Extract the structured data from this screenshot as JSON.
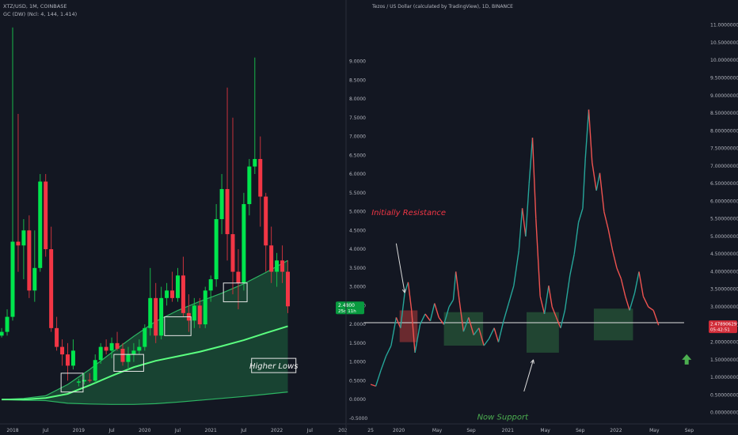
{
  "colors": {
    "background": "#131722",
    "bull": "#00e64d",
    "bear": "#f23645",
    "bull_light": "#26a69a",
    "bear_light": "#ef5350",
    "band_fill": "#1e7a46",
    "accent_line": "#5bff80",
    "axis_text": "#b2b5be",
    "note_red": "#f23645",
    "note_green": "#4caf50"
  },
  "chart_data": [
    {
      "type": "candlestick",
      "title": "XTZ/USD, 1M, COINBASE",
      "subtitle": "GC (DW) (Ncl: 4, 144, 1.414)",
      "x_ticks": [
        {
          "label": "2018",
          "x": 0
        },
        {
          "label": "Jul",
          "x": 6
        },
        {
          "label": "2019",
          "x": 12
        },
        {
          "label": "Jul",
          "x": 18
        },
        {
          "label": "2020",
          "x": 24
        },
        {
          "label": "Jul",
          "x": 30
        },
        {
          "label": "2021",
          "x": 36
        },
        {
          "label": "Jul",
          "x": 42
        },
        {
          "label": "2022",
          "x": 48
        },
        {
          "label": "Jul",
          "x": 54
        },
        {
          "label": "202",
          "x": 60
        }
      ],
      "xlim": [
        -2.3,
        60
      ],
      "ylim": [
        -0.65,
        10
      ],
      "y_ticks": [
        "9.0000",
        "8.5000",
        "8.0000",
        "7.5000",
        "7.0000",
        "6.5000",
        "6.0000",
        "5.5000",
        "5.0000",
        "4.5000",
        "4.0000",
        "3.5000",
        "3.0000",
        "2.5000",
        "2.0000",
        "1.5000",
        "1.0000",
        "0.5000",
        "0.0000",
        "-0.5000"
      ],
      "y_tick_values": [
        9.0,
        8.5,
        8.0,
        7.5,
        7.0,
        6.5,
        6.0,
        5.5,
        5.0,
        4.5,
        4.0,
        3.5,
        3.0,
        2.5,
        2.0,
        1.5,
        1.0,
        0.5,
        0.0,
        -0.5
      ],
      "last_price": {
        "label": "2.4800",
        "sub": "25d 11h",
        "value": 2.48
      },
      "candles": [
        {
          "x": -2,
          "o": 1.7,
          "h": 1.9,
          "l": 1.65,
          "c": 1.8
        },
        {
          "x": -1,
          "o": 1.8,
          "h": 2.4,
          "l": 1.7,
          "c": 2.2
        },
        {
          "x": 0,
          "o": 2.2,
          "h": 9.9,
          "l": 2.1,
          "c": 4.2
        },
        {
          "x": 1,
          "o": 4.2,
          "h": 7.6,
          "l": 3.4,
          "c": 4.1
        },
        {
          "x": 2,
          "o": 4.1,
          "h": 4.8,
          "l": 3.2,
          "c": 4.5
        },
        {
          "x": 3,
          "o": 4.5,
          "h": 4.9,
          "l": 2.7,
          "c": 2.9
        },
        {
          "x": 4,
          "o": 2.9,
          "h": 4.5,
          "l": 2.6,
          "c": 3.5
        },
        {
          "x": 5,
          "o": 3.5,
          "h": 6.0,
          "l": 3.4,
          "c": 5.8
        },
        {
          "x": 6,
          "o": 5.8,
          "h": 6.0,
          "l": 3.8,
          "c": 4.0
        },
        {
          "x": 7,
          "o": 4.0,
          "h": 4.6,
          "l": 1.8,
          "c": 1.9
        },
        {
          "x": 8,
          "o": 1.9,
          "h": 2.2,
          "l": 1.3,
          "c": 1.4
        },
        {
          "x": 9,
          "o": 1.4,
          "h": 1.6,
          "l": 0.9,
          "c": 1.2
        },
        {
          "x": 10,
          "o": 1.2,
          "h": 1.5,
          "l": 0.5,
          "c": 0.9
        },
        {
          "x": 11,
          "o": 0.9,
          "h": 1.6,
          "l": 0.8,
          "c": 1.3
        },
        {
          "x": 12,
          "o": 0.45,
          "h": 0.55,
          "l": 0.35,
          "c": 0.48
        },
        {
          "x": 13,
          "o": 0.48,
          "h": 0.7,
          "l": 0.4,
          "c": 0.52
        },
        {
          "x": 14,
          "o": 0.52,
          "h": 0.7,
          "l": 0.45,
          "c": 0.5
        },
        {
          "x": 15,
          "o": 0.5,
          "h": 1.2,
          "l": 0.45,
          "c": 1.05
        },
        {
          "x": 16,
          "o": 1.05,
          "h": 1.5,
          "l": 0.95,
          "c": 1.4
        },
        {
          "x": 17,
          "o": 1.4,
          "h": 1.6,
          "l": 1.2,
          "c": 1.3
        },
        {
          "x": 18,
          "o": 1.3,
          "h": 1.65,
          "l": 1.1,
          "c": 1.5
        },
        {
          "x": 19,
          "o": 1.5,
          "h": 1.8,
          "l": 1.3,
          "c": 1.35
        },
        {
          "x": 20,
          "o": 1.35,
          "h": 1.5,
          "l": 0.9,
          "c": 1.0
        },
        {
          "x": 21,
          "o": 1.0,
          "h": 1.4,
          "l": 0.8,
          "c": 1.2
        },
        {
          "x": 22,
          "o": 1.2,
          "h": 1.5,
          "l": 1.0,
          "c": 1.3
        },
        {
          "x": 23,
          "o": 1.3,
          "h": 1.6,
          "l": 1.2,
          "c": 1.4
        },
        {
          "x": 24,
          "o": 1.4,
          "h": 2.0,
          "l": 1.3,
          "c": 1.9
        },
        {
          "x": 25,
          "o": 1.9,
          "h": 3.5,
          "l": 1.7,
          "c": 2.7
        },
        {
          "x": 26,
          "o": 2.7,
          "h": 3.1,
          "l": 1.5,
          "c": 1.7
        },
        {
          "x": 27,
          "o": 1.7,
          "h": 3.0,
          "l": 1.6,
          "c": 2.7
        },
        {
          "x": 28,
          "o": 2.7,
          "h": 3.1,
          "l": 2.5,
          "c": 2.9
        },
        {
          "x": 29,
          "o": 2.9,
          "h": 3.4,
          "l": 2.6,
          "c": 2.7
        },
        {
          "x": 30,
          "o": 2.7,
          "h": 3.5,
          "l": 2.6,
          "c": 3.3
        },
        {
          "x": 31,
          "o": 3.3,
          "h": 3.8,
          "l": 2.2,
          "c": 2.3
        },
        {
          "x": 32,
          "o": 2.3,
          "h": 2.8,
          "l": 1.8,
          "c": 2.1
        },
        {
          "x": 33,
          "o": 2.1,
          "h": 2.7,
          "l": 1.9,
          "c": 2.5
        },
        {
          "x": 34,
          "o": 2.5,
          "h": 2.7,
          "l": 1.9,
          "c": 2.0
        },
        {
          "x": 35,
          "o": 2.0,
          "h": 3.0,
          "l": 1.9,
          "c": 2.9
        },
        {
          "x": 36,
          "o": 2.9,
          "h": 3.3,
          "l": 2.6,
          "c": 3.2
        },
        {
          "x": 37,
          "o": 3.2,
          "h": 5.2,
          "l": 3.0,
          "c": 4.8
        },
        {
          "x": 38,
          "o": 4.8,
          "h": 6.0,
          "l": 4.4,
          "c": 5.6
        },
        {
          "x": 39,
          "o": 5.6,
          "h": 8.3,
          "l": 3.7,
          "c": 4.4
        },
        {
          "x": 40,
          "o": 4.4,
          "h": 7.5,
          "l": 2.8,
          "c": 3.4
        },
        {
          "x": 41,
          "o": 3.4,
          "h": 4.0,
          "l": 2.4,
          "c": 3.1
        },
        {
          "x": 42,
          "o": 3.1,
          "h": 5.5,
          "l": 2.9,
          "c": 5.2
        },
        {
          "x": 43,
          "o": 5.2,
          "h": 6.4,
          "l": 4.9,
          "c": 6.2
        },
        {
          "x": 44,
          "o": 6.2,
          "h": 9.1,
          "l": 6.0,
          "c": 6.4
        },
        {
          "x": 45,
          "o": 6.4,
          "h": 7.0,
          "l": 4.6,
          "c": 5.4
        },
        {
          "x": 46,
          "o": 5.4,
          "h": 5.5,
          "l": 3.4,
          "c": 4.1
        },
        {
          "x": 47,
          "o": 4.1,
          "h": 4.6,
          "l": 3.1,
          "c": 3.4
        },
        {
          "x": 48,
          "o": 3.4,
          "h": 3.9,
          "l": 3.0,
          "c": 3.7
        },
        {
          "x": 49,
          "o": 3.7,
          "h": 4.1,
          "l": 3.1,
          "c": 3.4
        },
        {
          "x": 50,
          "o": 3.4,
          "h": 3.7,
          "l": 2.3,
          "c": 2.48
        }
      ],
      "band": [
        {
          "x": -2,
          "top": 0.0,
          "bottom": 0.0
        },
        {
          "x": 2,
          "top": 0.03,
          "bottom": -0.02
        },
        {
          "x": 6,
          "top": 0.1,
          "bottom": -0.03
        },
        {
          "x": 10,
          "top": 0.4,
          "bottom": -0.1
        },
        {
          "x": 14,
          "top": 0.8,
          "bottom": -0.12
        },
        {
          "x": 18,
          "top": 1.25,
          "bottom": -0.13
        },
        {
          "x": 22,
          "top": 1.68,
          "bottom": -0.13
        },
        {
          "x": 26,
          "top": 2.08,
          "bottom": -0.11
        },
        {
          "x": 30,
          "top": 2.37,
          "bottom": -0.07
        },
        {
          "x": 34,
          "top": 2.61,
          "bottom": -0.02
        },
        {
          "x": 38,
          "top": 2.83,
          "bottom": 0.03
        },
        {
          "x": 42,
          "top": 3.08,
          "bottom": 0.08
        },
        {
          "x": 46,
          "top": 3.38,
          "bottom": 0.14
        },
        {
          "x": 50,
          "top": 3.7,
          "bottom": 0.2
        }
      ],
      "middle_line": [
        {
          "x": -2,
          "y": 0.0
        },
        {
          "x": 2,
          "y": 0.0
        },
        {
          "x": 6,
          "y": 0.04
        },
        {
          "x": 10,
          "y": 0.15
        },
        {
          "x": 14,
          "y": 0.38
        },
        {
          "x": 18,
          "y": 0.63
        },
        {
          "x": 22,
          "y": 0.86
        },
        {
          "x": 26,
          "y": 1.03
        },
        {
          "x": 30,
          "y": 1.15
        },
        {
          "x": 34,
          "y": 1.27
        },
        {
          "x": 38,
          "y": 1.42
        },
        {
          "x": 42,
          "y": 1.58
        },
        {
          "x": 46,
          "y": 1.77
        },
        {
          "x": 50,
          "y": 1.95
        }
      ],
      "boxes": [
        {
          "x0": 8.8,
          "x1": 12.8,
          "y0": 0.2,
          "y1": 0.7
        },
        {
          "x0": 18.4,
          "x1": 23.8,
          "y0": 0.75,
          "y1": 1.2
        },
        {
          "x0": 27.6,
          "x1": 32.4,
          "y0": 1.7,
          "y1": 2.2
        },
        {
          "x0": 38.3,
          "x1": 42.6,
          "y0": 2.6,
          "y1": 3.1
        }
      ],
      "annotation": {
        "text": "Higher Lows",
        "x": 43.7,
        "y": 0.8
      }
    },
    {
      "type": "line",
      "title": "Tezos / US Dollar (calculated by TradingView), 1D, BINANCE",
      "x_ticks": [
        {
          "label": "25",
          "x": 0
        },
        {
          "label": "2020",
          "x": 3.3
        },
        {
          "label": "May",
          "x": 7.8
        },
        {
          "label": "Sep",
          "x": 11.8
        },
        {
          "label": "2021",
          "x": 16.1
        },
        {
          "label": "May",
          "x": 20.5
        },
        {
          "label": "Sep",
          "x": 24.6
        },
        {
          "label": "2022",
          "x": 28.8
        },
        {
          "label": "May",
          "x": 33.3
        },
        {
          "label": "Sep",
          "x": 37.4
        }
      ],
      "xlim": [
        -2.8,
        39.5
      ],
      "ylim": [
        -0.3,
        11.15
      ],
      "y_ticks": [
        "11.00000000",
        "10.50000000",
        "10.00000000",
        "9.50000000",
        "9.00000000",
        "8.50000000",
        "8.00000000",
        "7.50000000",
        "7.00000000",
        "6.50000000",
        "6.00000000",
        "5.50000000",
        "5.00000000",
        "4.50000000",
        "4.00000000",
        "3.50000000",
        "3.00000000",
        "2.50000000",
        "2.00000000",
        "1.50000000",
        "1.00000000",
        "0.50000000",
        "0.00000000"
      ],
      "y_tick_values": [
        11.0,
        10.5,
        10.0,
        9.5,
        9.0,
        8.5,
        8.0,
        7.5,
        7.0,
        6.5,
        6.0,
        5.5,
        5.0,
        4.5,
        4.0,
        3.5,
        3.0,
        2.5,
        2.0,
        1.5,
        1.0,
        0.5,
        0.0
      ],
      "last_price": {
        "label": "2.47890629",
        "sub": "05:42:51",
        "value": 2.48
      },
      "support_level": 2.55,
      "series": [
        {
          "x": 0,
          "y": 0.8
        },
        {
          "x": 0.6,
          "y": 0.75
        },
        {
          "x": 1.2,
          "y": 1.2
        },
        {
          "x": 1.8,
          "y": 1.6
        },
        {
          "x": 2.4,
          "y": 1.9
        },
        {
          "x": 3.0,
          "y": 2.7
        },
        {
          "x": 3.5,
          "y": 2.4
        },
        {
          "x": 4.0,
          "y": 3.4
        },
        {
          "x": 4.4,
          "y": 3.7
        },
        {
          "x": 4.8,
          "y": 2.9
        },
        {
          "x": 5.2,
          "y": 1.7
        },
        {
          "x": 5.8,
          "y": 2.5
        },
        {
          "x": 6.4,
          "y": 2.8
        },
        {
          "x": 7.0,
          "y": 2.6
        },
        {
          "x": 7.5,
          "y": 3.1
        },
        {
          "x": 8.0,
          "y": 2.7
        },
        {
          "x": 8.6,
          "y": 2.5
        },
        {
          "x": 9.2,
          "y": 3.0
        },
        {
          "x": 9.7,
          "y": 3.2
        },
        {
          "x": 10.0,
          "y": 4.0
        },
        {
          "x": 10.4,
          "y": 3.2
        },
        {
          "x": 10.9,
          "y": 2.3
        },
        {
          "x": 11.5,
          "y": 2.7
        },
        {
          "x": 12.1,
          "y": 2.2
        },
        {
          "x": 12.7,
          "y": 2.4
        },
        {
          "x": 13.3,
          "y": 1.9
        },
        {
          "x": 13.9,
          "y": 2.1
        },
        {
          "x": 14.5,
          "y": 2.4
        },
        {
          "x": 15.0,
          "y": 2.0
        },
        {
          "x": 15.6,
          "y": 2.6
        },
        {
          "x": 16.2,
          "y": 3.1
        },
        {
          "x": 16.8,
          "y": 3.6
        },
        {
          "x": 17.4,
          "y": 4.6
        },
        {
          "x": 17.8,
          "y": 5.8
        },
        {
          "x": 18.2,
          "y": 5.0
        },
        {
          "x": 18.6,
          "y": 6.5
        },
        {
          "x": 19.0,
          "y": 7.8
        },
        {
          "x": 19.4,
          "y": 5.5
        },
        {
          "x": 19.9,
          "y": 3.3
        },
        {
          "x": 20.4,
          "y": 2.8
        },
        {
          "x": 20.9,
          "y": 3.6
        },
        {
          "x": 21.3,
          "y": 3.0
        },
        {
          "x": 21.8,
          "y": 2.7
        },
        {
          "x": 22.3,
          "y": 2.4
        },
        {
          "x": 22.8,
          "y": 2.9
        },
        {
          "x": 23.4,
          "y": 3.9
        },
        {
          "x": 23.9,
          "y": 4.5
        },
        {
          "x": 24.4,
          "y": 5.4
        },
        {
          "x": 24.9,
          "y": 5.8
        },
        {
          "x": 25.2,
          "y": 7.2
        },
        {
          "x": 25.6,
          "y": 8.6
        },
        {
          "x": 26.0,
          "y": 7.1
        },
        {
          "x": 26.5,
          "y": 6.3
        },
        {
          "x": 26.9,
          "y": 6.8
        },
        {
          "x": 27.4,
          "y": 5.7
        },
        {
          "x": 27.9,
          "y": 5.2
        },
        {
          "x": 28.4,
          "y": 4.6
        },
        {
          "x": 28.9,
          "y": 4.1
        },
        {
          "x": 29.4,
          "y": 3.8
        },
        {
          "x": 29.9,
          "y": 3.3
        },
        {
          "x": 30.4,
          "y": 2.9
        },
        {
          "x": 31.0,
          "y": 3.4
        },
        {
          "x": 31.5,
          "y": 4.0
        },
        {
          "x": 32.0,
          "y": 3.3
        },
        {
          "x": 32.6,
          "y": 3.0
        },
        {
          "x": 33.2,
          "y": 2.9
        },
        {
          "x": 33.8,
          "y": 2.48
        }
      ],
      "zones": [
        {
          "x0": 3.4,
          "x1": 5.5,
          "y0": 2.0,
          "y1": 2.9,
          "color": "#b33a3a"
        },
        {
          "x0": 8.6,
          "x1": 13.2,
          "y0": 1.9,
          "y1": 2.85,
          "color": "#2e6b40"
        },
        {
          "x0": 18.3,
          "x1": 22.1,
          "y0": 1.7,
          "y1": 2.85,
          "color": "#2e6b40"
        },
        {
          "x0": 26.2,
          "x1": 30.8,
          "y0": 2.05,
          "y1": 2.95,
          "color": "#2e6b40"
        }
      ],
      "annotations": [
        {
          "text": "Initially Resistance",
          "x": 0.1,
          "y": 5.6,
          "color": "#f23645"
        },
        {
          "text": "Now Support",
          "x": 12.5,
          "y": -0.2,
          "color": "#4caf50"
        }
      ],
      "arrows": [
        {
          "from": [
            3.0,
            4.8
          ],
          "to": [
            4.0,
            3.4
          ],
          "color": "#dcdcdc"
        },
        {
          "from": [
            18.0,
            0.6
          ],
          "to": [
            19.1,
            1.5
          ],
          "color": "#dcdcdc"
        }
      ],
      "up_arrow": {
        "x": 37.1,
        "y": 1.5,
        "color": "#4caf50"
      }
    }
  ]
}
